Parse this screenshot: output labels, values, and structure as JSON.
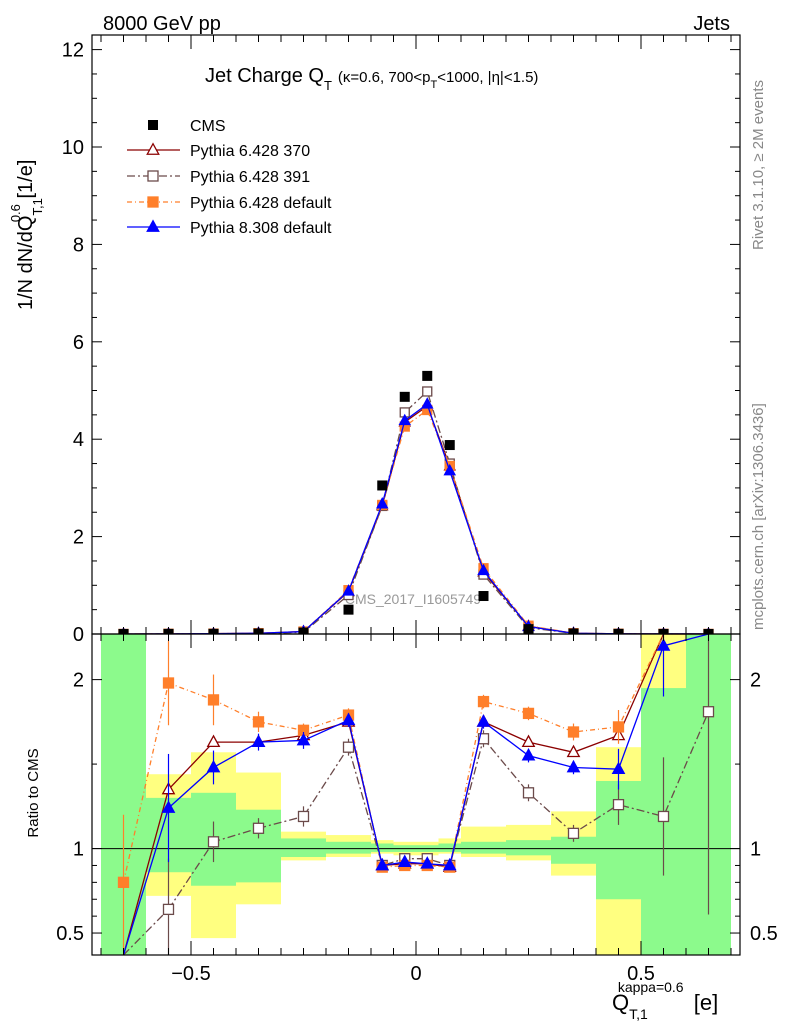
{
  "header": {
    "left": "8000 GeV pp",
    "right": "Jets"
  },
  "side_labels": {
    "rivet": "Rivet 3.1.10, ≥ 2M events",
    "mcplots": "mcplots.cern.ch [arXiv:1306.3436]"
  },
  "chart_data": {
    "type": "scatter",
    "title": {
      "main": "Jet Charge Q",
      "main_sub": "T",
      "detail_a": "(κ=0.6, 700<p",
      "detail_sub": "T",
      "detail_b": "<1000, |η|<1.5)"
    },
    "watermark": "CMS_2017_I1605749",
    "ylabel": {
      "prefix": "1/N dN/dQ",
      "sup": "0.6",
      "sub": "T,1",
      "suffix": " [1/e]"
    },
    "xlabel": {
      "main": "Q",
      "sup": "kappa=0.6",
      "sub": "T,1",
      "suffix": " [e]"
    },
    "ratio_ylabel": "Ratio to CMS",
    "xlim": [
      -0.72,
      0.72
    ],
    "ylim": [
      0,
      12.3
    ],
    "ratio_ylim": [
      0.37,
      2.27
    ],
    "x_ticks": [
      -0.5,
      0,
      0.5
    ],
    "x_tick_labels": [
      "−0.5",
      "0",
      "0.5"
    ],
    "y_ticks": [
      0,
      2,
      4,
      6,
      8,
      10,
      12
    ],
    "ratio_ticks": [
      0.5,
      1,
      2
    ],
    "ratio_tick_labels": [
      "0.5",
      "1",
      "2"
    ],
    "legend_position": "top-left",
    "bin_edges": [
      -0.7,
      -0.6,
      -0.5,
      -0.4,
      -0.3,
      -0.2,
      -0.1,
      -0.05,
      0,
      0.05,
      0.1,
      0.2,
      0.3,
      0.4,
      0.5,
      0.6,
      0.7
    ],
    "x": [
      -0.65,
      -0.55,
      -0.45,
      -0.35,
      -0.25,
      -0.15,
      -0.075,
      -0.025,
      0.025,
      0.075,
      0.15,
      0.25,
      0.35,
      0.45,
      0.55,
      0.65
    ],
    "data": {
      "name": "CMS",
      "values": [
        0.0,
        0.002,
        0.004,
        0.01,
        0.03,
        0.5,
        3.05,
        4.87,
        5.3,
        3.88,
        0.78,
        0.1,
        0.01,
        0.003,
        0.001,
        0.0
      ]
    },
    "band_green": [
      [
        0.37,
        2.27
      ],
      [
        0.86,
        1.3
      ],
      [
        0.78,
        1.33
      ],
      [
        0.8,
        1.23
      ],
      [
        0.95,
        1.06
      ],
      [
        0.97,
        1.04
      ],
      [
        0.98,
        1.03
      ],
      [
        0.98,
        1.02
      ],
      [
        0.98,
        1.02
      ],
      [
        0.98,
        1.03
      ],
      [
        0.97,
        1.04
      ],
      [
        0.96,
        1.05
      ],
      [
        0.91,
        1.07
      ],
      [
        0.7,
        1.4
      ],
      [
        0.37,
        1.95
      ],
      [
        0.37,
        2.27
      ]
    ],
    "band_yellow": [
      [
        0.37,
        2.27
      ],
      [
        0.72,
        1.44
      ],
      [
        0.47,
        1.57
      ],
      [
        0.67,
        1.45
      ],
      [
        0.93,
        1.1
      ],
      [
        0.95,
        1.08
      ],
      [
        0.97,
        1.05
      ],
      [
        0.96,
        1.04
      ],
      [
        0.96,
        1.04
      ],
      [
        0.97,
        1.06
      ],
      [
        0.95,
        1.13
      ],
      [
        0.93,
        1.14
      ],
      [
        0.84,
        1.22
      ],
      [
        0.37,
        1.6
      ],
      [
        0.37,
        2.27
      ],
      [
        0.37,
        2.27
      ]
    ],
    "series": [
      {
        "name": "Pythia 6.428 370",
        "color": "#8b0000",
        "marker": "triangle-open",
        "dash": "",
        "values": [
          0.0,
          0.003,
          0.006,
          0.016,
          0.05,
          0.87,
          2.63,
          4.35,
          4.68,
          3.45,
          1.27,
          0.16,
          0.016,
          0.005,
          0.002,
          0.001
        ],
        "ratio": [
          0.18,
          1.35,
          1.63,
          1.63,
          1.67,
          1.75,
          0.9,
          0.91,
          0.91,
          0.89,
          1.75,
          1.63,
          1.57,
          1.67,
          2.5,
          2.5
        ]
      },
      {
        "name": "Pythia 6.428 391",
        "color": "#6b4a4a",
        "marker": "square-open",
        "dash": "8,3,2,3",
        "values": [
          0.0,
          0.002,
          0.004,
          0.011,
          0.036,
          0.8,
          2.63,
          4.55,
          4.98,
          3.5,
          1.22,
          0.13,
          0.011,
          0.004,
          0.001,
          0.0
        ],
        "ratio": [
          0.18,
          0.64,
          1.04,
          1.12,
          1.19,
          1.6,
          0.9,
          0.94,
          0.94,
          0.9,
          1.65,
          1.33,
          1.09,
          1.26,
          1.19,
          1.81
        ],
        "ratio_err": [
          null,
          0.3,
          0.12,
          0.06,
          0.06,
          0.05,
          0.02,
          0.02,
          0.02,
          0.02,
          0.05,
          0.05,
          0.05,
          0.12,
          0.35,
          1.2
        ]
      },
      {
        "name": "Pythia 6.428 default",
        "color": "#ff7f2a",
        "marker": "square-filled",
        "dash": "5,3,1,3",
        "values": [
          0.0,
          0.004,
          0.008,
          0.018,
          0.051,
          0.9,
          2.65,
          4.26,
          4.6,
          3.45,
          1.35,
          0.17,
          0.017,
          0.005,
          0.002,
          0.001
        ],
        "ratio": [
          0.8,
          1.98,
          1.88,
          1.75,
          1.7,
          1.79,
          0.89,
          0.9,
          0.9,
          0.89,
          1.87,
          1.8,
          1.69,
          1.72,
          2.5,
          2.5
        ],
        "ratio_err": [
          0.4,
          0.25,
          0.15,
          0.06,
          0.04,
          0.04,
          0.02,
          0.02,
          0.02,
          0.02,
          0.04,
          0.04,
          0.05,
          0.1,
          0.3,
          0.3
        ]
      },
      {
        "name": "Pythia 8.308 default",
        "color": "#0000ff",
        "marker": "triangle-filled",
        "dash": "",
        "values": [
          0.0,
          0.002,
          0.006,
          0.016,
          0.05,
          0.88,
          2.67,
          4.38,
          4.72,
          3.35,
          1.3,
          0.15,
          0.015,
          0.004,
          0.002,
          0.001
        ],
        "ratio": [
          0.18,
          1.24,
          1.48,
          1.63,
          1.64,
          1.76,
          0.9,
          0.92,
          0.91,
          0.9,
          1.75,
          1.55,
          1.48,
          1.47,
          2.2,
          2.5
        ],
        "ratio_err": [
          null,
          0.32,
          0.1,
          0.05,
          0.05,
          0.04,
          0.02,
          0.02,
          0.02,
          0.02,
          0.04,
          0.04,
          0.04,
          0.12,
          0.3,
          0.3
        ]
      }
    ]
  }
}
